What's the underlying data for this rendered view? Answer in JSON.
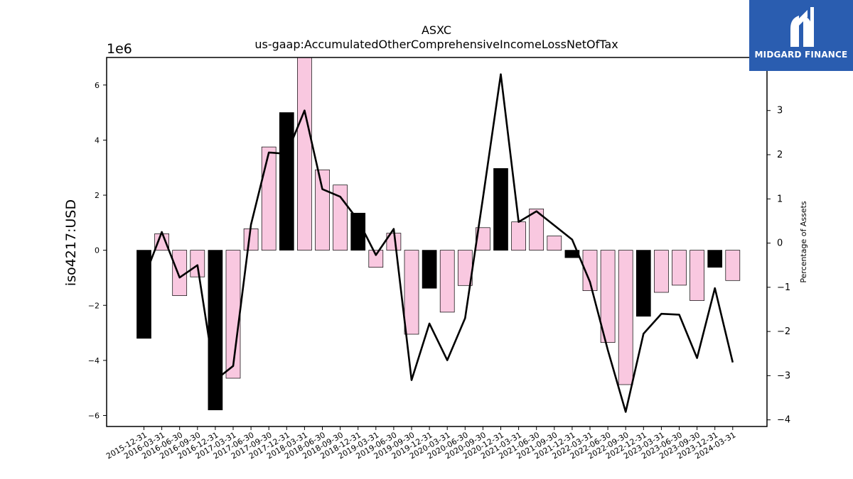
{
  "chart_data": {
    "type": "bar",
    "title": "ASXC",
    "subtitle": "us-gaap:AccumulatedOtherComprehensiveIncomeLossNetOfTax",
    "ylabel": "iso4217:USD",
    "y_scale_label": "1e6",
    "y2label": "Percentage of Assets",
    "ylim": [
      -6.4,
      7.0
    ],
    "y2lim": [
      -4.15,
      4.2
    ],
    "yticks": [
      "−6",
      "−4",
      "−2",
      "0",
      "2",
      "4",
      "6"
    ],
    "y2ticks": [
      "−4",
      "−3",
      "−2",
      "−1",
      "0",
      "1",
      "2",
      "3"
    ],
    "categories": [
      "2015-12-31",
      "2016-03-31",
      "2016-06-30",
      "2016-09-30",
      "2016-12-31",
      "2017-03-31",
      "2017-06-30",
      "2017-09-30",
      "2017-12-31",
      "2018-03-31",
      "2018-06-30",
      "2018-09-30",
      "2018-12-31",
      "2019-03-31",
      "2019-06-30",
      "2019-09-30",
      "2019-12-31",
      "2020-03-31",
      "2020-06-30",
      "2020-09-30",
      "2020-12-31",
      "2021-03-31",
      "2021-06-30",
      "2021-09-30",
      "2021-12-31",
      "2022-03-31",
      "2022-06-30",
      "2022-09-30",
      "2022-12-31",
      "2023-03-31",
      "2023-06-30",
      "2023-09-30",
      "2023-12-31",
      "2024-03-31"
    ],
    "series": [
      {
        "kind": "bar",
        "values": [
          -3.2,
          0.6,
          -1.65,
          -0.97,
          -5.8,
          -4.65,
          0.78,
          3.75,
          5.0,
          7.0,
          2.92,
          2.37,
          1.35,
          -0.62,
          0.62,
          -3.05,
          -1.38,
          -2.25,
          -1.28,
          0.82,
          2.97,
          1.03,
          1.5,
          0.52,
          -0.27,
          -1.47,
          -3.35,
          -4.88,
          -2.4,
          -1.53,
          -1.27,
          -1.83,
          -0.62,
          -1.1
        ],
        "highlight": [
          true,
          false,
          false,
          false,
          true,
          false,
          false,
          false,
          true,
          false,
          false,
          false,
          true,
          false,
          false,
          false,
          true,
          false,
          false,
          false,
          true,
          false,
          false,
          false,
          true,
          false,
          false,
          false,
          true,
          false,
          false,
          false,
          true,
          false
        ]
      },
      {
        "kind": "line",
        "axis": "right",
        "values": [
          -0.8,
          0.25,
          -0.78,
          -0.5,
          -3.1,
          -2.78,
          0.42,
          2.05,
          2.02,
          3.0,
          1.22,
          1.05,
          0.52,
          -0.27,
          0.32,
          -3.1,
          -1.82,
          -2.65,
          -1.7,
          1.02,
          3.82,
          0.48,
          0.72,
          0.4,
          0.08,
          -0.88,
          -2.42,
          -3.82,
          -2.05,
          -1.6,
          -1.62,
          -2.6,
          -1.02,
          -2.7
        ]
      }
    ],
    "colors": {
      "bar": "#f9c8e0",
      "bar_highlight": "#000000",
      "line": "#000000"
    }
  },
  "logo": {
    "text": "MIDGARD FINANCE",
    "icon": "midgard-logo-icon"
  }
}
